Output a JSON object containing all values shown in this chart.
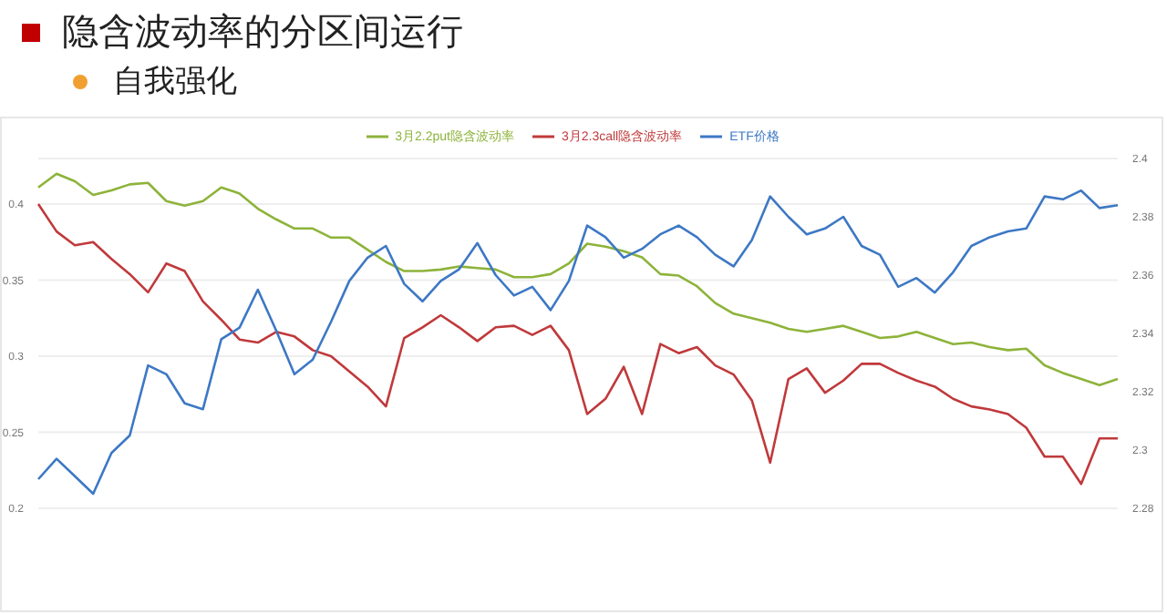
{
  "chart_data": {
    "type": "line",
    "title": "隐含波动率的分区间运行",
    "subtitle": "自我强化",
    "categories": [
      null,
      null,
      null,
      null,
      null,
      null,
      null,
      null,
      null,
      null,
      null,
      null,
      null,
      null,
      null,
      null,
      null,
      null,
      null,
      null,
      null,
      null,
      null,
      null,
      null,
      null,
      null,
      null,
      null,
      null,
      null,
      null,
      null,
      null,
      null,
      null,
      null,
      null,
      null,
      null,
      null,
      null,
      null,
      null,
      null,
      null,
      null,
      null,
      null,
      null,
      null,
      null,
      null,
      null,
      null,
      null,
      null,
      null,
      null,
      null
    ],
    "series": [
      {
        "name": "3月2.3call隐含波动率",
        "color": "#c0393b",
        "values": [
          0.4,
          0.382,
          0.373,
          0.375,
          0.364,
          0.354,
          0.342,
          0.361,
          0.356,
          0.336,
          0.324,
          0.311,
          0.309,
          0.316,
          0.313,
          0.304,
          0.3,
          0.29,
          0.28,
          0.267,
          0.312,
          0.319,
          0.327,
          0.319,
          0.31,
          0.319,
          0.32,
          0.314,
          0.32,
          0.304,
          0.262,
          0.272,
          0.293,
          0.262,
          0.308,
          0.302,
          0.306,
          0.294,
          0.288,
          0.271,
          0.23,
          0.285,
          0.292,
          0.276,
          0.284,
          0.295,
          0.295,
          0.289,
          0.284,
          0.28,
          0.272,
          0.267,
          0.265,
          0.262,
          0.253,
          0.234,
          0.234,
          0.216,
          0.246,
          0.246
        ]
      },
      {
        "name": "3月2.2put隐含波动率",
        "color": "#8db33a",
        "values": [
          0.411,
          0.42,
          0.415,
          0.406,
          0.409,
          0.413,
          0.414,
          0.402,
          0.399,
          0.402,
          0.411,
          0.407,
          0.397,
          0.39,
          0.384,
          0.384,
          0.378,
          0.378,
          0.37,
          0.362,
          0.356,
          0.356,
          0.357,
          0.359,
          0.358,
          0.357,
          0.352,
          0.352,
          0.354,
          0.361,
          0.374,
          0.372,
          0.369,
          0.365,
          0.354,
          0.353,
          0.346,
          0.335,
          0.328,
          0.325,
          0.322,
          0.318,
          0.316,
          0.318,
          0.32,
          0.316,
          0.312,
          0.313,
          0.316,
          0.312,
          0.308,
          0.309,
          0.306,
          0.304,
          0.305,
          0.294,
          0.289,
          0.285,
          0.281,
          0.285
        ]
      },
      {
        "name": "ETF价格",
        "color": "#3d78c4",
        "axis": "y2",
        "values": [
          2.29,
          2.297,
          2.291,
          2.285,
          2.299,
          2.305,
          2.329,
          2.326,
          2.316,
          2.314,
          2.338,
          2.342,
          2.355,
          2.341,
          2.326,
          2.331,
          2.344,
          2.358,
          2.366,
          2.37,
          2.357,
          2.351,
          2.358,
          2.362,
          2.371,
          2.36,
          2.353,
          2.356,
          2.348,
          2.358,
          2.377,
          2.373,
          2.366,
          2.369,
          2.374,
          2.377,
          2.373,
          2.367,
          2.363,
          2.372,
          2.387,
          2.38,
          2.374,
          2.376,
          2.38,
          2.37,
          2.367,
          2.356,
          2.359,
          2.354,
          2.361,
          2.37,
          2.373,
          2.375,
          2.376,
          2.387,
          2.386,
          2.389,
          2.383,
          2.384
        ]
      }
    ],
    "ylim": [
      0.2,
      0.43
    ],
    "yticks": [
      0.2,
      0.25,
      0.3,
      0.35,
      0.4
    ],
    "y2lim": [
      2.28,
      2.4
    ],
    "y2ticks": [
      2.28,
      2.3,
      2.32,
      2.34,
      2.36,
      2.38,
      2.4
    ],
    "grid": "y",
    "legend": "top",
    "marker": "none",
    "line_style": "solid"
  }
}
